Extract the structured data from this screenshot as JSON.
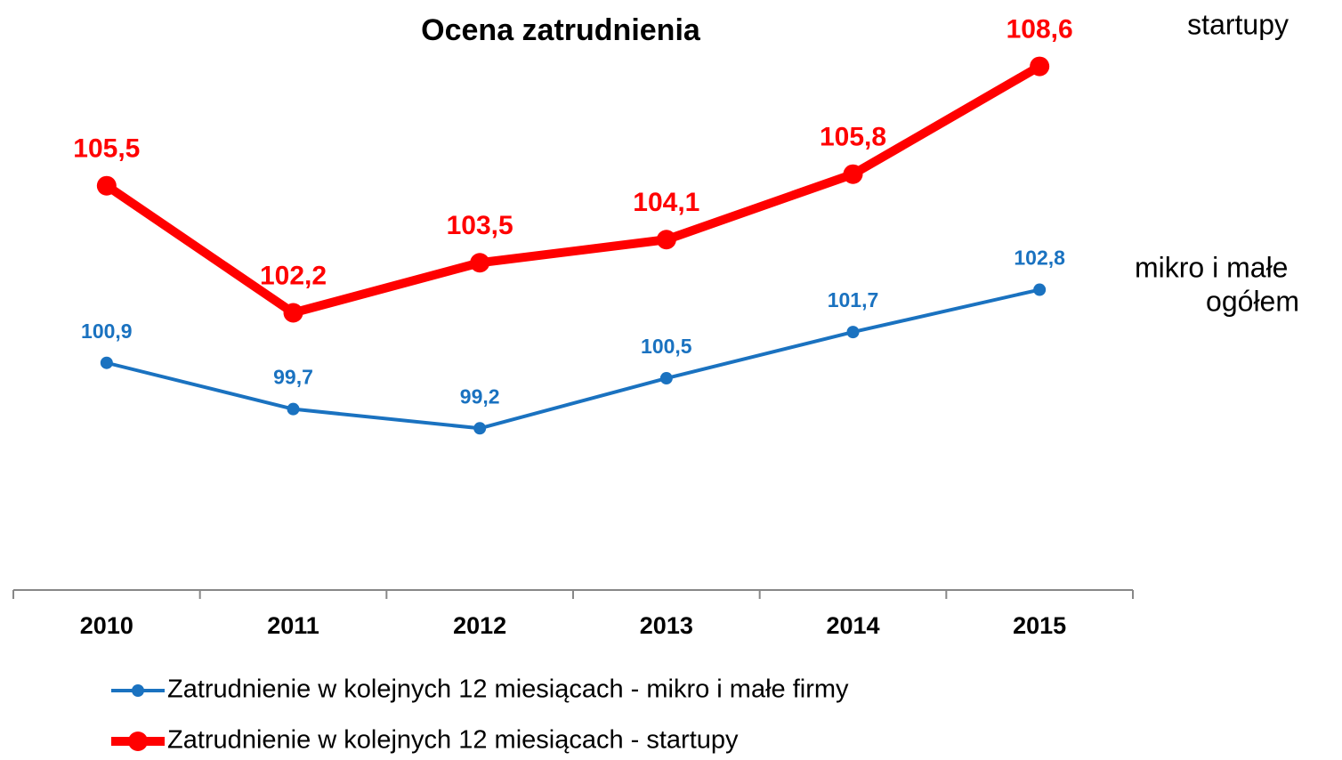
{
  "chart_data": {
    "type": "line",
    "title": "Ocena zatrudnienia",
    "categories": [
      "2010",
      "2011",
      "2012",
      "2013",
      "2014",
      "2015"
    ],
    "series": [
      {
        "name": "Zatrudnienie w kolejnych 12 miesiącach - mikro i małe firmy",
        "color": "#1a72c0",
        "values": [
          100.9,
          99.7,
          99.2,
          100.5,
          101.7,
          102.8
        ],
        "value_labels": [
          "100,9",
          "99,7",
          "99,2",
          "100,5",
          "101,7",
          "102,8"
        ]
      },
      {
        "name": "Zatrudnienie w kolejnych 12 miesiącach - startupy",
        "color": "#ff0000",
        "values": [
          105.5,
          102.2,
          103.5,
          104.1,
          105.8,
          108.6
        ],
        "value_labels": [
          "105,5",
          "102,2",
          "103,5",
          "104,1",
          "105,8",
          "108,6"
        ]
      }
    ],
    "ylim": [
      95,
      110
    ],
    "annotations": [
      "startupy",
      "mikro i małe",
      "ogółem"
    ]
  }
}
